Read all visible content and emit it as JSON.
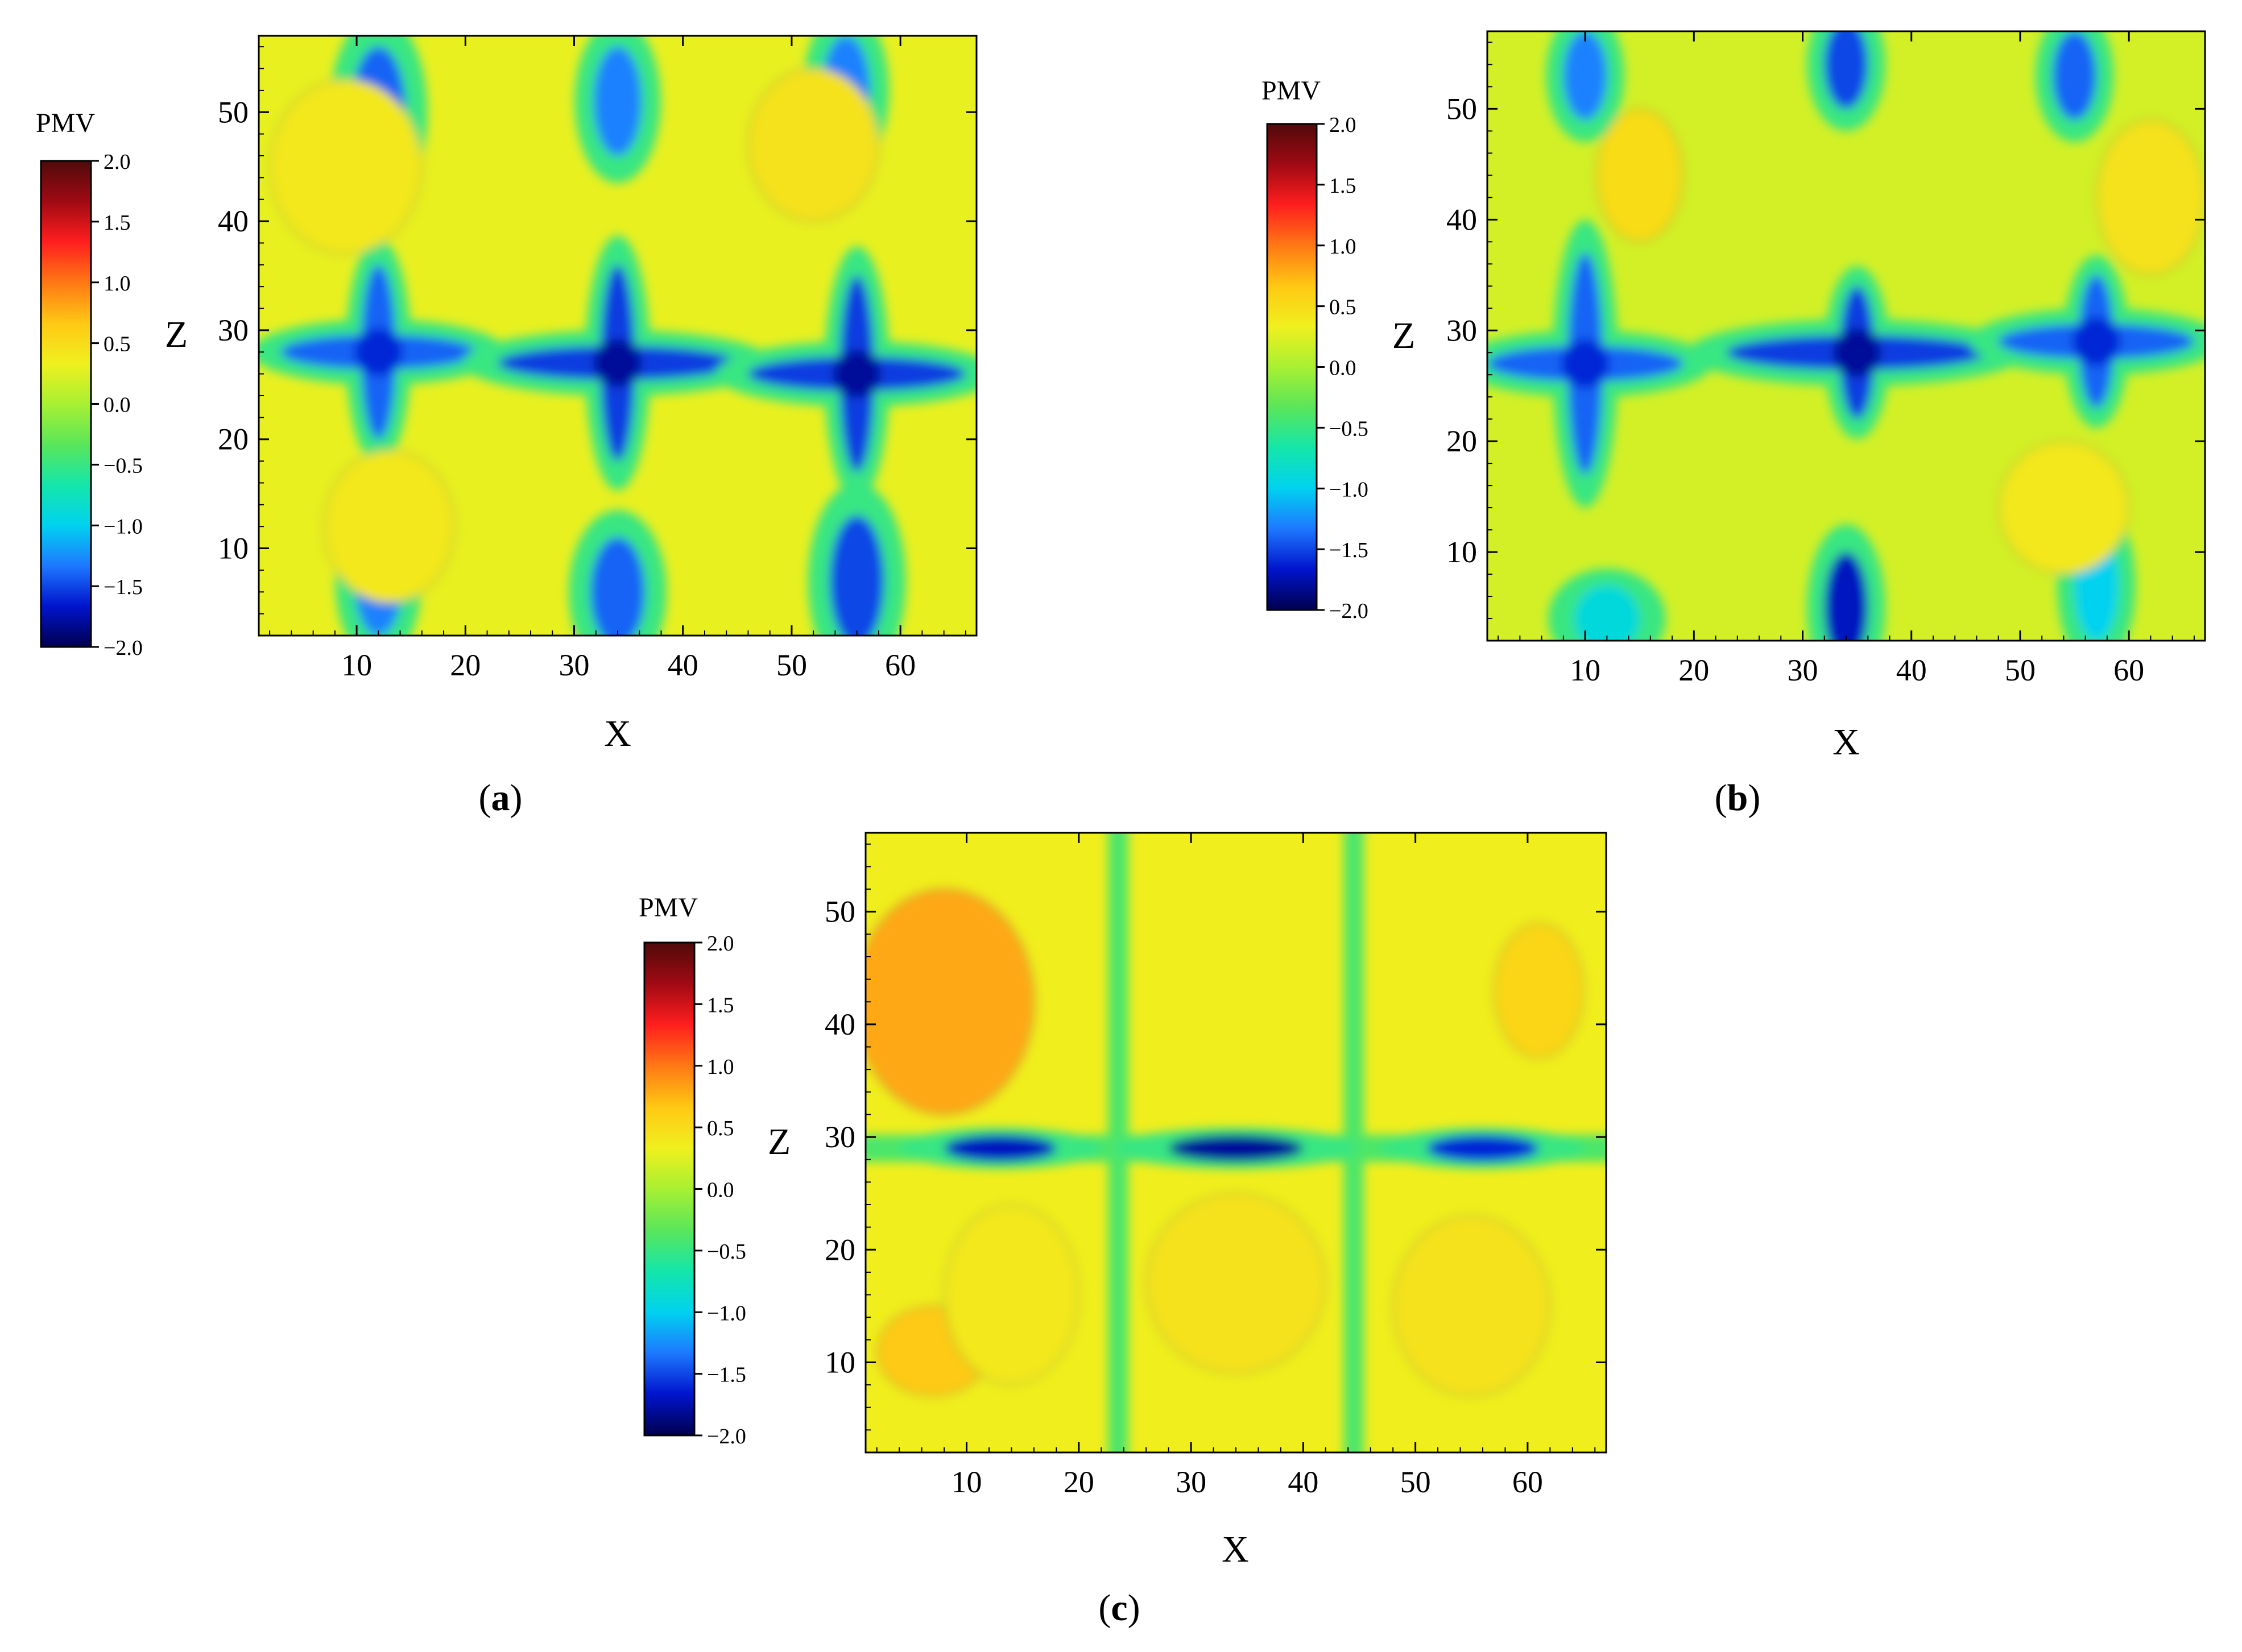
{
  "figure": {
    "panels": [
      {
        "id": "a",
        "caption": "(a)",
        "caption_letter": "a"
      },
      {
        "id": "b",
        "caption": "(b)",
        "caption_letter": "b"
      },
      {
        "id": "c",
        "caption": "(c)",
        "caption_letter": "c"
      }
    ]
  },
  "colors": {
    "scale": [
      "#00004d",
      "#0014cc",
      "#1e78ff",
      "#00d2f0",
      "#14e6aa",
      "#5ae65a",
      "#a8f032",
      "#f0f01e",
      "#ffc814",
      "#ff7814",
      "#ff1e1e",
      "#a00a14",
      "#500a0a"
    ],
    "band_yellow_green": "#b4e83c",
    "band_yellow": "#e6ee28",
    "band_orange": "#f5b41e",
    "band_cyan": "#28e6c8",
    "band_blue": "#1e64f0",
    "band_dark_blue": "#0014a0",
    "contour_line": "#2a7a46",
    "axis_color": "#000000"
  },
  "chart_data": [
    {
      "type": "heatmap",
      "panel": "a",
      "quantity": "PMV",
      "colorbar": {
        "title": "PMV",
        "range": [
          -2.0,
          2.0
        ],
        "tick_labels": [
          "2.0",
          "1.5",
          "1.0",
          "0.5",
          "0.0",
          "−0.5",
          "−1.0",
          "−1.5",
          "−2.0"
        ]
      },
      "xlabel": "X",
      "ylabel": "Z",
      "xlim": [
        1,
        67
      ],
      "ylim": [
        2,
        57
      ],
      "x_ticks": [
        10,
        20,
        30,
        40,
        50,
        60
      ],
      "y_ticks": [
        10,
        20,
        30,
        40,
        50
      ],
      "x_tick_labels": [
        "10",
        "20",
        "30",
        "40",
        "50",
        "60"
      ],
      "y_tick_labels": [
        "10",
        "20",
        "30",
        "40",
        "50"
      ],
      "grid": false,
      "background_pmv": 0.3,
      "features": [
        {
          "kind": "cross",
          "x": 12,
          "z": 28,
          "pmv": -1.6,
          "arm_x": 9,
          "arm_z": 8
        },
        {
          "kind": "cross",
          "x": 34,
          "z": 27,
          "pmv": -1.8,
          "arm_x": 11,
          "arm_z": 9
        },
        {
          "kind": "cross",
          "x": 56,
          "z": 26,
          "pmv": -1.8,
          "arm_x": 10,
          "arm_z": 9
        },
        {
          "kind": "spot",
          "x": 12,
          "z": 50,
          "pmv": -1.4,
          "rx": 2.5,
          "rz": 6
        },
        {
          "kind": "spot",
          "x": 34,
          "z": 51,
          "pmv": -1.3,
          "rx": 2.2,
          "rz": 5
        },
        {
          "kind": "spot",
          "x": 55,
          "z": 52,
          "pmv": -1.3,
          "rx": 2.2,
          "rz": 5
        },
        {
          "kind": "spot",
          "x": 12,
          "z": 7,
          "pmv": -1.3,
          "rx": 2.2,
          "rz": 5
        },
        {
          "kind": "spot",
          "x": 34,
          "z": 6,
          "pmv": -1.4,
          "rx": 2.5,
          "rz": 5
        },
        {
          "kind": "spot",
          "x": 56,
          "z": 7,
          "pmv": -1.5,
          "rx": 2.5,
          "rz": 6
        },
        {
          "kind": "zone",
          "x": 9,
          "z": 45,
          "pmv": 0.4,
          "rx": 7,
          "rz": 8
        },
        {
          "kind": "zone",
          "x": 52,
          "z": 47,
          "pmv": 0.45,
          "rx": 6,
          "rz": 7
        },
        {
          "kind": "zone",
          "x": 13,
          "z": 12,
          "pmv": 0.4,
          "rx": 6,
          "rz": 7
        }
      ]
    },
    {
      "type": "heatmap",
      "panel": "b",
      "quantity": "PMV",
      "colorbar": {
        "title": "PMV",
        "range": [
          -2.0,
          2.0
        ],
        "tick_labels": [
          "2.0",
          "1.5",
          "1.0",
          "0.5",
          "0.0",
          "−0.5",
          "−1.0",
          "−1.5",
          "−2.0"
        ]
      },
      "xlabel": "X",
      "ylabel": "Z",
      "xlim": [
        1,
        67
      ],
      "ylim": [
        2,
        57
      ],
      "x_ticks": [
        10,
        20,
        30,
        40,
        50,
        60
      ],
      "y_ticks": [
        10,
        20,
        30,
        40,
        50
      ],
      "x_tick_labels": [
        "10",
        "20",
        "30",
        "40",
        "50",
        "60"
      ],
      "y_tick_labels": [
        "10",
        "20",
        "30",
        "40",
        "50"
      ],
      "grid": false,
      "background_pmv": 0.2,
      "features": [
        {
          "kind": "cross",
          "x": 10,
          "z": 27,
          "pmv": -1.6,
          "arm_x": 9,
          "arm_z": 10
        },
        {
          "kind": "cross",
          "x": 35,
          "z": 28,
          "pmv": -1.8,
          "arm_x": 12,
          "arm_z": 6
        },
        {
          "kind": "cross",
          "x": 57,
          "z": 29,
          "pmv": -1.6,
          "arm_x": 9,
          "arm_z": 6
        },
        {
          "kind": "spot",
          "x": 10,
          "z": 53,
          "pmv": -1.3,
          "rx": 2,
          "rz": 4
        },
        {
          "kind": "spot",
          "x": 34,
          "z": 54,
          "pmv": -1.5,
          "rx": 2,
          "rz": 4
        },
        {
          "kind": "spot",
          "x": 55,
          "z": 53,
          "pmv": -1.4,
          "rx": 2,
          "rz": 4
        },
        {
          "kind": "spot",
          "x": 34,
          "z": 5,
          "pmv": -1.7,
          "rx": 2,
          "rz": 5
        },
        {
          "kind": "spot",
          "x": 57,
          "z": 7,
          "pmv": -1.0,
          "rx": 2,
          "rz": 5
        },
        {
          "kind": "spot",
          "x": 12,
          "z": 4,
          "pmv": -0.9,
          "rx": 3,
          "rz": 3
        },
        {
          "kind": "zone",
          "x": 15,
          "z": 44,
          "pmv": 0.5,
          "rx": 4,
          "rz": 6
        },
        {
          "kind": "zone",
          "x": 62,
          "z": 42,
          "pmv": 0.45,
          "rx": 5,
          "rz": 7
        },
        {
          "kind": "zone",
          "x": 54,
          "z": 14,
          "pmv": 0.4,
          "rx": 6,
          "rz": 6
        }
      ]
    },
    {
      "type": "heatmap",
      "panel": "c",
      "quantity": "PMV",
      "colorbar": {
        "title": "PMV",
        "range": [
          -2.0,
          2.0
        ],
        "tick_labels": [
          "2.0",
          "1.5",
          "1.0",
          "0.5",
          "0.0",
          "−0.5",
          "−1.0",
          "−1.5",
          "−2.0"
        ]
      },
      "xlabel": "X",
      "ylabel": "Z",
      "xlim": [
        1,
        67
      ],
      "ylim": [
        2,
        57
      ],
      "x_ticks": [
        10,
        20,
        30,
        40,
        50,
        60
      ],
      "y_ticks": [
        10,
        20,
        30,
        40,
        50
      ],
      "x_tick_labels": [
        "10",
        "20",
        "30",
        "40",
        "50",
        "60"
      ],
      "y_tick_labels": [
        "10",
        "20",
        "30",
        "40",
        "50"
      ],
      "grid": false,
      "background_pmv": 0.35,
      "features": [
        {
          "kind": "hline",
          "z": 29,
          "pmv": -0.4,
          "half_width": 1.2
        },
        {
          "kind": "vline",
          "x": 23.5,
          "pmv": -0.4,
          "half_width": 0.9
        },
        {
          "kind": "vline",
          "x": 44.5,
          "pmv": -0.4,
          "half_width": 0.9
        },
        {
          "kind": "spot",
          "x": 13,
          "z": 29,
          "pmv": -1.7,
          "rx": 5,
          "rz": 1.2
        },
        {
          "kind": "spot",
          "x": 34,
          "z": 29,
          "pmv": -1.8,
          "rx": 6,
          "rz": 1.2
        },
        {
          "kind": "spot",
          "x": 56,
          "z": 29,
          "pmv": -1.6,
          "rx": 5,
          "rz": 1.2
        },
        {
          "kind": "zone",
          "x": 8,
          "z": 42,
          "pmv": 0.8,
          "rx": 8,
          "rz": 10
        },
        {
          "kind": "zone",
          "x": 7,
          "z": 11,
          "pmv": 0.65,
          "rx": 5,
          "rz": 4
        },
        {
          "kind": "zone",
          "x": 61,
          "z": 43,
          "pmv": 0.55,
          "rx": 4,
          "rz": 6
        },
        {
          "kind": "zone",
          "x": 34,
          "z": 17,
          "pmv": 0.45,
          "rx": 8,
          "rz": 8
        },
        {
          "kind": "zone",
          "x": 55,
          "z": 15,
          "pmv": 0.45,
          "rx": 7,
          "rz": 8
        },
        {
          "kind": "zone",
          "x": 14,
          "z": 16,
          "pmv": 0.4,
          "rx": 6,
          "rz": 8
        }
      ]
    }
  ]
}
